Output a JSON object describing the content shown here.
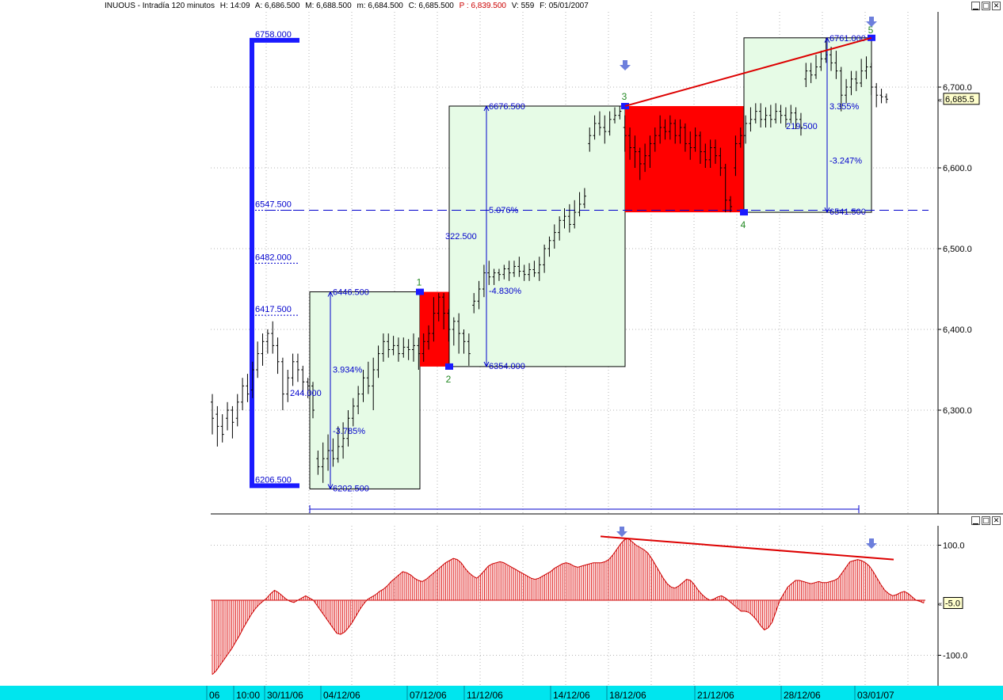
{
  "header": {
    "symbol": "INUOUS - Intradía 120 minutos",
    "h": "H: 14:09",
    "a": "A: 6,686.500",
    "m": "M: 6,688.500",
    "min": "m: 6,684.500",
    "c": "C: 6,685.500",
    "p": "P : 6,839.500",
    "v": "V: 559",
    "f": "F: 05/01/2007"
  },
  "window_buttons": [
    "▁",
    "□",
    "✕"
  ],
  "colors": {
    "bull_box": "#e6fbe6",
    "bear_box": "#ff0000",
    "blue": "#0000cc",
    "bright_blue": "#1a1aff",
    "trend_red": "#dd0000",
    "arrow": "#6d7fdc",
    "pivot_label": "#228822",
    "time_axis": "#00e5ee"
  },
  "icons": {
    "divergence_marker": "down-arrow-icon",
    "pivot_marker": "square-marker-icon"
  },
  "chart_data": [
    {
      "type": "candlestick",
      "title": "",
      "x_ticks": [
        "06",
        "10:00",
        "30/11/06",
        "04/12/06",
        "07/12/06",
        "11/12/06",
        "14/12/06",
        "18/12/06",
        "21/12/06",
        "28/12/06",
        "03/01/07"
      ],
      "y_ticks": [
        "6,300.0",
        "6,400.0",
        "6,500.0",
        "6,600.0",
        "6,700.0"
      ],
      "ylim": [
        6180,
        6790
      ],
      "last_value": "6,685.5",
      "bars": [
        [
          6310,
          6290,
          6320,
          6270
        ],
        [
          6295,
          6280,
          6305,
          6255
        ],
        [
          6280,
          6270,
          6295,
          6260
        ],
        [
          6290,
          6300,
          6310,
          6275
        ],
        [
          6300,
          6285,
          6305,
          6265
        ],
        [
          6290,
          6310,
          6320,
          6280
        ],
        [
          6310,
          6330,
          6340,
          6300
        ],
        [
          6330,
          6320,
          6345,
          6310
        ],
        [
          6325,
          6350,
          6360,
          6315
        ],
        [
          6350,
          6370,
          6385,
          6340
        ],
        [
          6370,
          6385,
          6395,
          6355
        ],
        [
          6385,
          6395,
          6400,
          6370
        ],
        [
          6395,
          6380,
          6410,
          6370
        ],
        [
          6380,
          6360,
          6390,
          6345
        ],
        [
          6360,
          6320,
          6365,
          6300
        ],
        [
          6320,
          6340,
          6350,
          6310
        ],
        [
          6340,
          6360,
          6370,
          6330
        ],
        [
          6360,
          6350,
          6370,
          6335
        ],
        [
          6350,
          6335,
          6355,
          6320
        ],
        [
          6335,
          6330,
          6340,
          6315
        ],
        [
          6330,
          6300,
          6335,
          6290
        ],
        [
          6240,
          6230,
          6250,
          6220
        ],
        [
          6230,
          6240,
          6260,
          6210
        ],
        [
          6240,
          6250,
          6270,
          6225
        ],
        [
          6250,
          6240,
          6265,
          6230
        ],
        [
          6240,
          6255,
          6280,
          6235
        ],
        [
          6255,
          6265,
          6285,
          6240
        ],
        [
          6265,
          6290,
          6300,
          6255
        ],
        [
          6290,
          6305,
          6315,
          6280
        ],
        [
          6305,
          6320,
          6330,
          6295
        ],
        [
          6320,
          6340,
          6350,
          6310
        ],
        [
          6340,
          6330,
          6360,
          6320
        ],
        [
          6330,
          6350,
          6365,
          6300
        ],
        [
          6350,
          6370,
          6380,
          6340
        ],
        [
          6370,
          6385,
          6395,
          6360
        ],
        [
          6385,
          6375,
          6395,
          6365
        ],
        [
          6375,
          6380,
          6392,
          6368
        ],
        [
          6380,
          6370,
          6390,
          6360
        ],
        [
          6370,
          6378,
          6390,
          6365
        ],
        [
          6378,
          6375,
          6388,
          6362
        ],
        [
          6375,
          6380,
          6395,
          6360
        ],
        [
          6380,
          6370,
          6390,
          6350
        ],
        [
          6370,
          6385,
          6395,
          6360
        ],
        [
          6385,
          6395,
          6405,
          6375
        ],
        [
          6395,
          6420,
          6440,
          6385
        ],
        [
          6420,
          6440,
          6445,
          6410
        ],
        [
          6440,
          6420,
          6445,
          6400
        ],
        [
          6420,
          6400,
          6425,
          6385
        ],
        [
          6400,
          6410,
          6415,
          6380
        ],
        [
          6410,
          6395,
          6420,
          6370
        ],
        [
          6395,
          6385,
          6400,
          6370
        ],
        [
          6385,
          6370,
          6395,
          6355
        ],
        [
          6430,
          6435,
          6445,
          6420
        ],
        [
          6435,
          6450,
          6460,
          6425
        ],
        [
          6450,
          6470,
          6480,
          6440
        ],
        [
          6470,
          6465,
          6485,
          6455
        ],
        [
          6465,
          6470,
          6475,
          6455
        ],
        [
          6470,
          6468,
          6475,
          6460
        ],
        [
          6468,
          6475,
          6480,
          6462
        ],
        [
          6475,
          6470,
          6485,
          6460
        ],
        [
          6470,
          6478,
          6485,
          6465
        ],
        [
          6478,
          6472,
          6490,
          6465
        ],
        [
          6472,
          6468,
          6480,
          6460
        ],
        [
          6468,
          6474,
          6482,
          6460
        ],
        [
          6474,
          6470,
          6485,
          6465
        ],
        [
          6470,
          6480,
          6490,
          6460
        ],
        [
          6480,
          6500,
          6505,
          6470
        ],
        [
          6500,
          6510,
          6515,
          6490
        ],
        [
          6510,
          6520,
          6530,
          6500
        ],
        [
          6520,
          6535,
          6540,
          6510
        ],
        [
          6535,
          6540,
          6550,
          6525
        ],
        [
          6540,
          6530,
          6555,
          6520
        ],
        [
          6530,
          6545,
          6560,
          6525
        ],
        [
          6545,
          6555,
          6570,
          6540
        ],
        [
          6555,
          6565,
          6575,
          6550
        ],
        [
          6630,
          6640,
          6650,
          6620
        ],
        [
          6640,
          6655,
          6665,
          6635
        ],
        [
          6655,
          6650,
          6670,
          6640
        ],
        [
          6650,
          6645,
          6665,
          6630
        ],
        [
          6645,
          6660,
          6670,
          6640
        ],
        [
          6660,
          6665,
          6675,
          6655
        ],
        [
          6665,
          6670,
          6676,
          6660
        ],
        [
          6650,
          6640,
          6665,
          6620
        ],
        [
          6640,
          6625,
          6650,
          6610
        ],
        [
          6625,
          6620,
          6640,
          6600
        ],
        [
          6620,
          6605,
          6625,
          6585
        ],
        [
          6605,
          6615,
          6630,
          6595
        ],
        [
          6615,
          6630,
          6640,
          6600
        ],
        [
          6630,
          6640,
          6650,
          6620
        ],
        [
          6640,
          6650,
          6665,
          6630
        ],
        [
          6650,
          6645,
          6660,
          6635
        ],
        [
          6645,
          6655,
          6665,
          6635
        ],
        [
          6655,
          6640,
          6660,
          6630
        ],
        [
          6640,
          6650,
          6660,
          6630
        ],
        [
          6650,
          6630,
          6655,
          6620
        ],
        [
          6630,
          6625,
          6645,
          6610
        ],
        [
          6625,
          6640,
          6650,
          6620
        ],
        [
          6640,
          6620,
          6645,
          6605
        ],
        [
          6620,
          6610,
          6630,
          6600
        ],
        [
          6610,
          6625,
          6635,
          6600
        ],
        [
          6625,
          6615,
          6635,
          6605
        ],
        [
          6615,
          6600,
          6625,
          6590
        ],
        [
          6600,
          6560,
          6605,
          6545
        ],
        [
          6560,
          6552,
          6565,
          6545
        ],
        [
          6600,
          6630,
          6640,
          6590
        ],
        [
          6630,
          6640,
          6650,
          6625
        ],
        [
          6640,
          6655,
          6665,
          6630
        ],
        [
          6655,
          6660,
          6675,
          6645
        ],
        [
          6660,
          6670,
          6680,
          6655
        ],
        [
          6670,
          6660,
          6680,
          6650
        ],
        [
          6660,
          6665,
          6675,
          6650
        ],
        [
          6665,
          6660,
          6678,
          6650
        ],
        [
          6660,
          6670,
          6680,
          6655
        ],
        [
          6670,
          6665,
          6678,
          6655
        ],
        [
          6665,
          6660,
          6675,
          6650
        ],
        [
          6660,
          6668,
          6678,
          6655
        ],
        [
          6668,
          6660,
          6675,
          6648
        ],
        [
          6660,
          6650,
          6668,
          6640
        ],
        [
          6710,
          6720,
          6730,
          6700
        ],
        [
          6720,
          6715,
          6730,
          6705
        ],
        [
          6715,
          6725,
          6740,
          6710
        ],
        [
          6725,
          6735,
          6745,
          6720
        ],
        [
          6735,
          6740,
          6761,
          6730
        ],
        [
          6740,
          6730,
          6750,
          6720
        ],
        [
          6730,
          6720,
          6745,
          6710
        ],
        [
          6720,
          6690,
          6725,
          6670
        ],
        [
          6690,
          6700,
          6710,
          6680
        ],
        [
          6700,
          6710,
          6720,
          6690
        ],
        [
          6710,
          6705,
          6720,
          6695
        ],
        [
          6705,
          6720,
          6735,
          6700
        ],
        [
          6720,
          6725,
          6738,
          6710
        ],
        [
          6725,
          6700,
          6730,
          6690
        ],
        [
          6700,
          6690,
          6705,
          6675
        ],
        [
          6690,
          6688,
          6698,
          6680
        ],
        [
          6688,
          6685,
          6692,
          6680
        ]
      ],
      "boxes": [
        {
          "kind": "bull",
          "top_label": "6446.500",
          "bottom_label": "6202.500",
          "range_label": "244.000",
          "pct_up": "3.934%",
          "pct_down": "-3.785%"
        },
        {
          "kind": "bear"
        },
        {
          "kind": "bull",
          "top_label": "6676.500",
          "bottom_label": "6354.000",
          "range_label": "322.500",
          "pct_up": "5.076%",
          "pct_down": "-4.830%"
        },
        {
          "kind": "bear"
        },
        {
          "kind": "bull",
          "top_label": "6761.000",
          "bottom_label": "6541.500",
          "range_label": "219.500",
          "pct_up": "3.355%",
          "pct_down": "-3.247%"
        }
      ],
      "levels": {
        "top": "6758.000",
        "bottom": "6206.500",
        "fibs": [
          "6547.500",
          "6482.000",
          "6417.500"
        ]
      },
      "pivots": [
        "1",
        "2",
        "3",
        "4",
        "5"
      ]
    },
    {
      "type": "histogram",
      "title": "",
      "y_ticks": [
        "100.0",
        "-100.0"
      ],
      "ylim": [
        -145,
        120
      ],
      "last_value": "-5.0",
      "values": [
        -135,
        -128,
        -118,
        -108,
        -98,
        -88,
        -76,
        -64,
        -50,
        -38,
        -26,
        -16,
        -8,
        -2,
        4,
        12,
        18,
        14,
        8,
        2,
        -2,
        -4,
        0,
        4,
        8,
        4,
        0,
        -10,
        -20,
        -30,
        -40,
        -50,
        -60,
        -62,
        -58,
        -50,
        -40,
        -28,
        -16,
        -6,
        2,
        6,
        10,
        16,
        20,
        26,
        34,
        40,
        46,
        52,
        50,
        46,
        40,
        36,
        34,
        38,
        44,
        50,
        56,
        62,
        68,
        72,
        76,
        74,
        68,
        58,
        50,
        44,
        40,
        46,
        54,
        62,
        66,
        68,
        70,
        68,
        64,
        60,
        56,
        52,
        48,
        44,
        40,
        38,
        40,
        44,
        48,
        52,
        58,
        62,
        66,
        68,
        66,
        62,
        60,
        62,
        64,
        66,
        68,
        68,
        68,
        70,
        74,
        82,
        92,
        102,
        110,
        112,
        106,
        100,
        96,
        92,
        86,
        76,
        64,
        52,
        40,
        30,
        24,
        22,
        26,
        32,
        38,
        36,
        28,
        18,
        10,
        4,
        0,
        2,
        6,
        8,
        4,
        -2,
        -8,
        -14,
        -20,
        -20,
        -22,
        -28,
        -36,
        -46,
        -54,
        -50,
        -40,
        -20,
        0,
        12,
        24,
        30,
        36,
        36,
        34,
        32,
        30,
        32,
        34,
        32,
        32,
        34,
        36,
        40,
        50,
        60,
        70,
        72,
        74,
        72,
        68,
        62,
        52,
        40,
        28,
        18,
        12,
        8,
        10,
        14,
        16,
        12,
        6,
        0,
        -2,
        -5
      ]
    }
  ]
}
